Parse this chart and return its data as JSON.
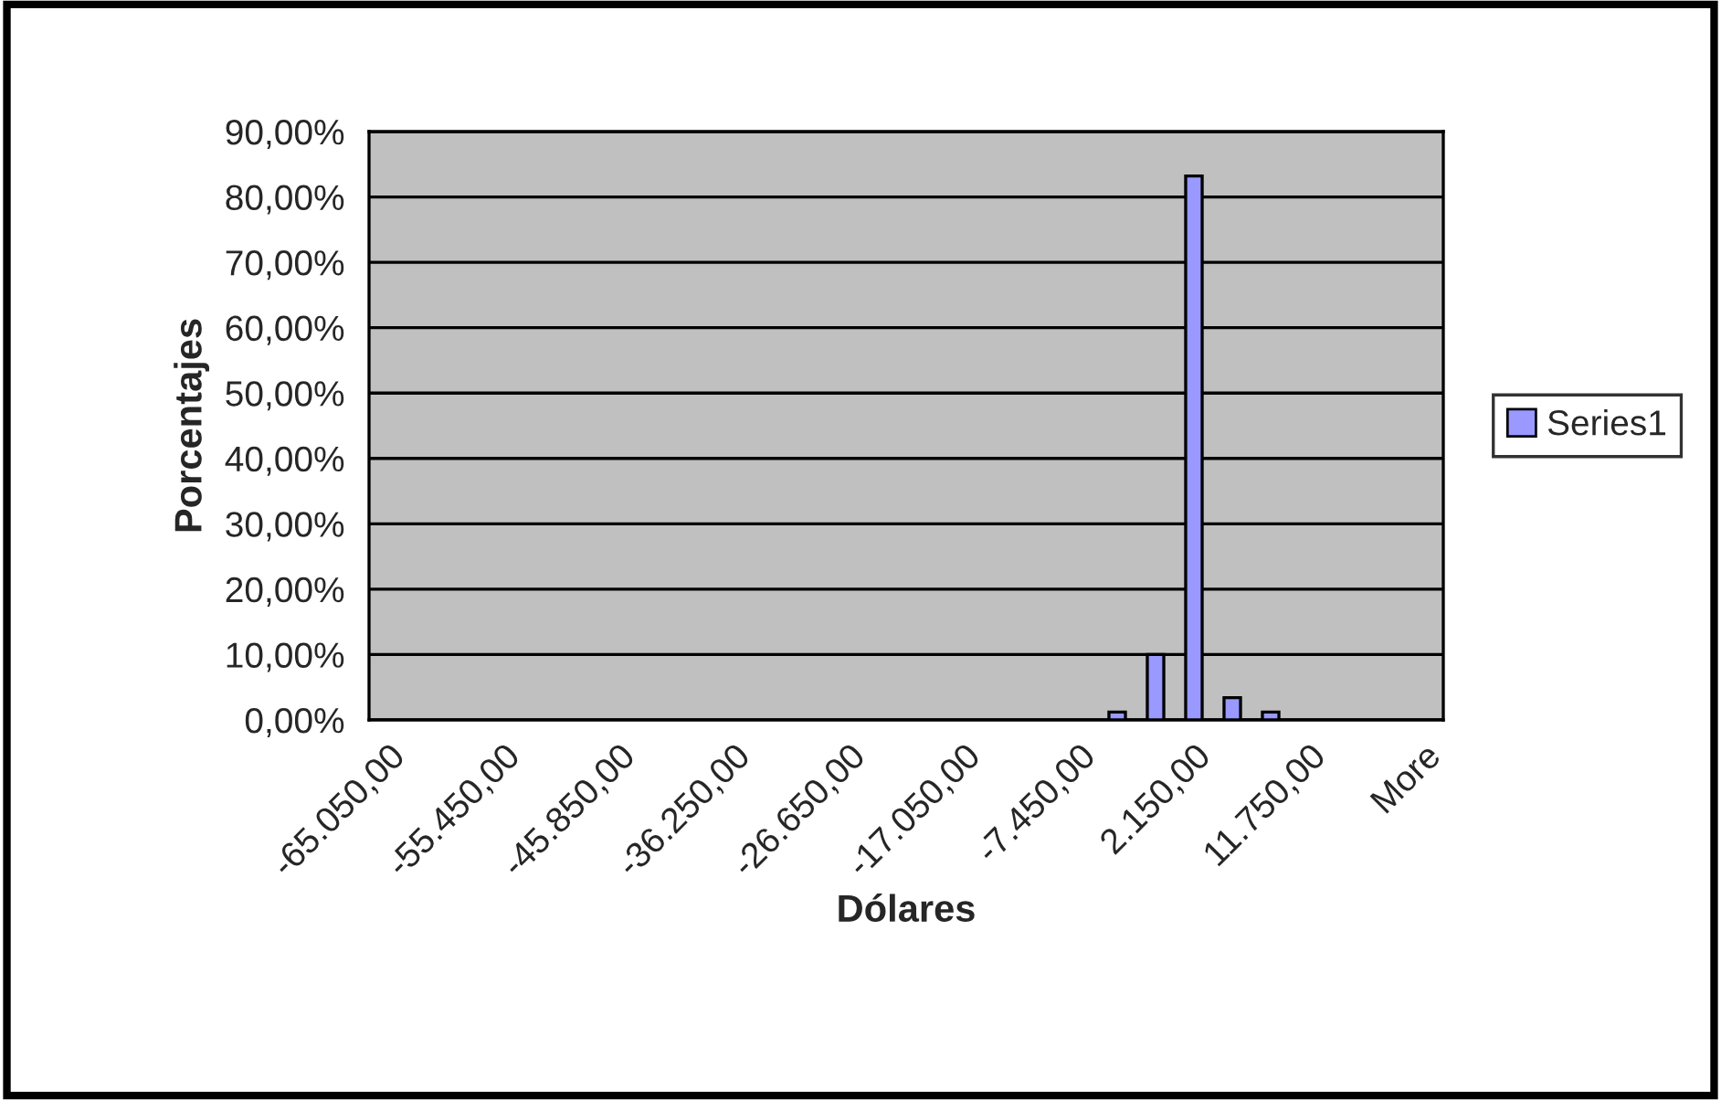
{
  "chart_data": {
    "type": "bar",
    "xlabel": "Dólares",
    "ylabel": "Porcentajes",
    "categories": [
      "-65.050,00",
      null,
      null,
      "-55.450,00",
      null,
      null,
      "-45.850,00",
      null,
      null,
      "-36.250,00",
      null,
      null,
      "-26.650,00",
      null,
      null,
      "-17.050,00",
      null,
      null,
      "-7.450,00",
      null,
      null,
      "2.150,00",
      null,
      null,
      "11.750,00",
      null,
      null,
      "More"
    ],
    "series": [
      {
        "name": "Series1",
        "color": "#9999ff",
        "values": [
          0,
          0,
          0,
          0,
          0,
          0,
          0,
          0,
          0,
          0,
          0,
          0,
          0,
          0,
          0,
          0,
          0,
          0,
          0,
          1.2,
          10,
          83.2,
          3.4,
          1.2,
          0,
          0,
          0,
          0
        ]
      }
    ],
    "ylim": [
      0,
      90
    ],
    "yticks": [
      {
        "value": 0,
        "label": "0,00%"
      },
      {
        "value": 10,
        "label": "10,00%"
      },
      {
        "value": 20,
        "label": "20,00%"
      },
      {
        "value": 30,
        "label": "30,00%"
      },
      {
        "value": 40,
        "label": "40,00%"
      },
      {
        "value": 50,
        "label": "50,00%"
      },
      {
        "value": 60,
        "label": "60,00%"
      },
      {
        "value": 70,
        "label": "70,00%"
      },
      {
        "value": 80,
        "label": "80,00%"
      },
      {
        "value": 90,
        "label": "90,00%"
      }
    ],
    "grid": "y",
    "legend": "right"
  }
}
